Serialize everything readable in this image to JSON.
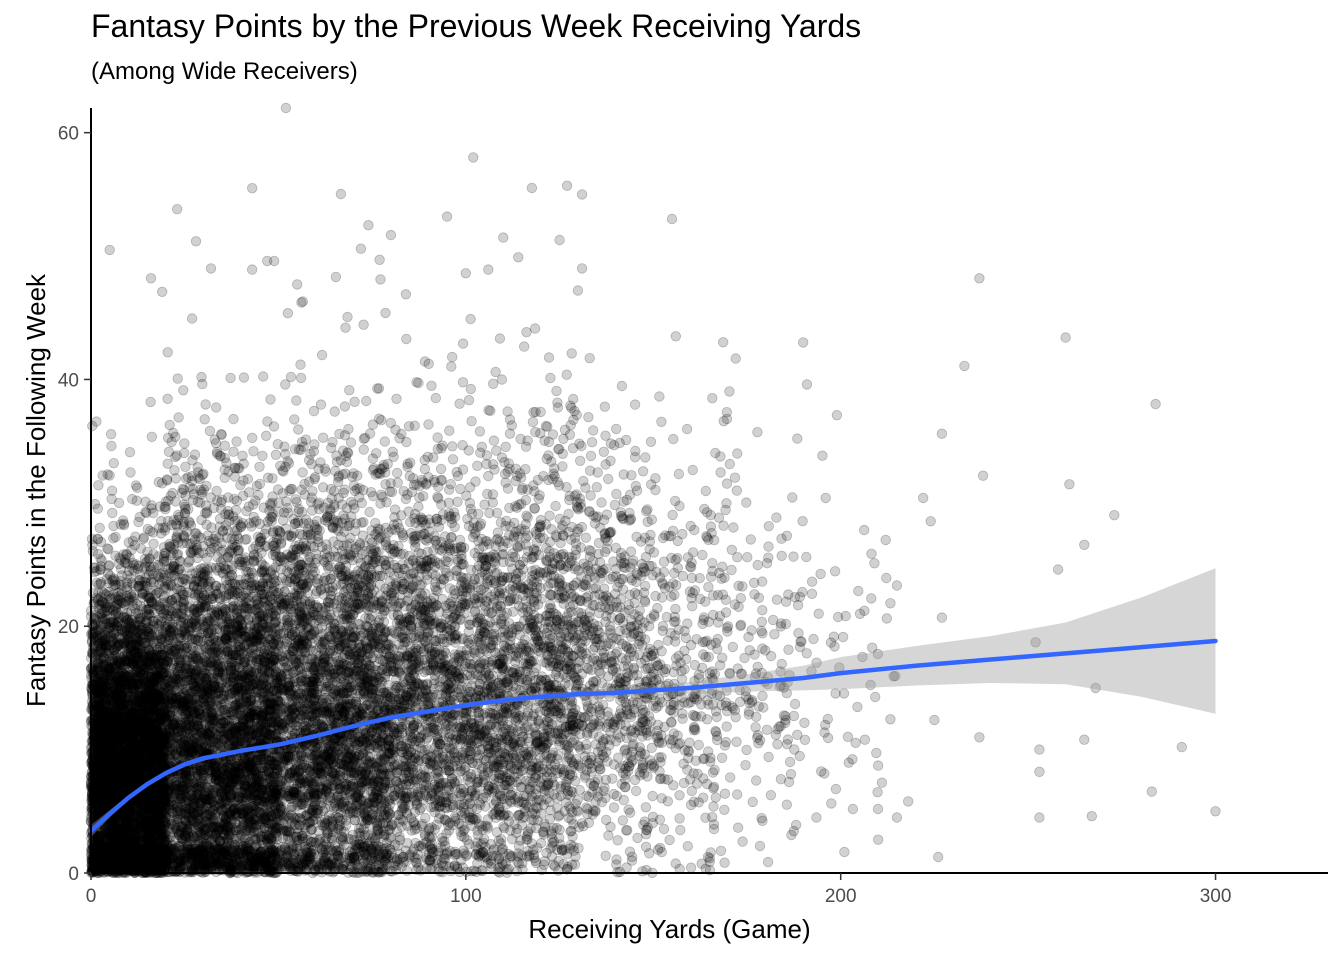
{
  "chart_data": {
    "type": "scatter",
    "title": "Fantasy Points by the Previous Week Receiving Yards",
    "subtitle": "(Among Wide Receivers)",
    "xlabel": "Receiving Yards (Game)",
    "ylabel": "Fantasy Points in the Following Week",
    "xlim": [
      0,
      330
    ],
    "ylim": [
      0,
      62
    ],
    "x_ticks": [
      0,
      100,
      200,
      300
    ],
    "y_ticks": [
      0,
      20,
      40,
      60
    ],
    "grid": false,
    "point_color": "#000000",
    "point_opacity": 0.18,
    "outlier_points": [
      {
        "x": 52,
        "y": 62
      },
      {
        "x": 102,
        "y": 58
      },
      {
        "x": 127,
        "y": 55.7
      },
      {
        "x": 43,
        "y": 55.5
      },
      {
        "x": 131,
        "y": 55
      },
      {
        "x": 23,
        "y": 53.8
      },
      {
        "x": 95,
        "y": 53.2
      },
      {
        "x": 155,
        "y": 53
      },
      {
        "x": 74,
        "y": 52.5
      },
      {
        "x": 28,
        "y": 51.2
      },
      {
        "x": 80,
        "y": 51.7
      },
      {
        "x": 110,
        "y": 51.5
      },
      {
        "x": 125,
        "y": 51.3
      },
      {
        "x": 72,
        "y": 50.6
      },
      {
        "x": 5,
        "y": 50.5
      },
      {
        "x": 114,
        "y": 49.9
      },
      {
        "x": 47,
        "y": 49.6
      },
      {
        "x": 77,
        "y": 49.7
      },
      {
        "x": 32,
        "y": 49
      },
      {
        "x": 43,
        "y": 48.9
      },
      {
        "x": 100,
        "y": 48.6
      },
      {
        "x": 131,
        "y": 49
      },
      {
        "x": 16,
        "y": 48.2
      },
      {
        "x": 55,
        "y": 47.7
      },
      {
        "x": 106,
        "y": 48.9
      },
      {
        "x": 237,
        "y": 48.2
      },
      {
        "x": 19,
        "y": 47.1
      },
      {
        "x": 84,
        "y": 46.9
      },
      {
        "x": 156,
        "y": 43.5
      },
      {
        "x": 260,
        "y": 43.4
      },
      {
        "x": 190,
        "y": 43
      },
      {
        "x": 172,
        "y": 41.7
      },
      {
        "x": 233,
        "y": 41.1
      },
      {
        "x": 191,
        "y": 39.6
      },
      {
        "x": 284,
        "y": 38
      },
      {
        "x": 199,
        "y": 37.1
      },
      {
        "x": 227,
        "y": 35.6
      },
      {
        "x": 238,
        "y": 32.2
      },
      {
        "x": 261,
        "y": 31.5
      },
      {
        "x": 222,
        "y": 30.4
      },
      {
        "x": 196,
        "y": 30.4
      },
      {
        "x": 273,
        "y": 29
      },
      {
        "x": 224,
        "y": 28.5
      },
      {
        "x": 212,
        "y": 27
      },
      {
        "x": 265,
        "y": 26.6
      },
      {
        "x": 258,
        "y": 24.6
      },
      {
        "x": 209,
        "y": 25.1
      },
      {
        "x": 215,
        "y": 23.3
      },
      {
        "x": 252,
        "y": 18.7
      },
      {
        "x": 227,
        "y": 20.7
      },
      {
        "x": 268,
        "y": 15
      },
      {
        "x": 225,
        "y": 12.4
      },
      {
        "x": 237,
        "y": 11
      },
      {
        "x": 253,
        "y": 10
      },
      {
        "x": 265,
        "y": 10.8
      },
      {
        "x": 291,
        "y": 10.2
      },
      {
        "x": 253,
        "y": 8.2
      },
      {
        "x": 283,
        "y": 6.6
      },
      {
        "x": 300,
        "y": 5
      },
      {
        "x": 253,
        "y": 4.5
      },
      {
        "x": 267,
        "y": 4.6
      },
      {
        "x": 201,
        "y": 1.7
      },
      {
        "x": 226,
        "y": 1.3
      },
      {
        "x": 210,
        "y": 2.7
      },
      {
        "x": 215,
        "y": 4.5
      },
      {
        "x": 218,
        "y": 5.8
      }
    ],
    "density_profile": [
      {
        "x_min": 0,
        "x_max": 20,
        "count": 5200,
        "y_mode": 6,
        "y_spread": 9
      },
      {
        "x_min": 20,
        "x_max": 50,
        "count": 4200,
        "y_mode": 8,
        "y_spread": 11
      },
      {
        "x_min": 50,
        "x_max": 80,
        "count": 3000,
        "y_mode": 10,
        "y_spread": 11
      },
      {
        "x_min": 80,
        "x_max": 110,
        "count": 1900,
        "y_mode": 11,
        "y_spread": 11
      },
      {
        "x_min": 110,
        "x_max": 130,
        "count": 1100,
        "y_mode": 12,
        "y_spread": 11
      },
      {
        "x_min": 130,
        "x_max": 150,
        "count": 650,
        "y_mode": 13,
        "y_spread": 10
      },
      {
        "x_min": 150,
        "x_max": 170,
        "count": 330,
        "y_mode": 13,
        "y_spread": 10
      },
      {
        "x_min": 170,
        "x_max": 190,
        "count": 150,
        "y_mode": 14,
        "y_spread": 9
      },
      {
        "x_min": 190,
        "x_max": 215,
        "count": 60,
        "y_mode": 14,
        "y_spread": 8
      }
    ],
    "series": [
      {
        "type": "smooth",
        "color": "#3366FF",
        "x": [
          0,
          5,
          10,
          15,
          20,
          25,
          30,
          40,
          50,
          60,
          70,
          80,
          90,
          100,
          110,
          120,
          130,
          140,
          150,
          160,
          175,
          190,
          200,
          220,
          240,
          260,
          280,
          300
        ],
        "y": [
          3.4,
          4.8,
          6.1,
          7.2,
          8.1,
          8.8,
          9.3,
          9.9,
          10.4,
          11.1,
          11.9,
          12.6,
          13.1,
          13.6,
          14.0,
          14.3,
          14.5,
          14.6,
          14.8,
          15.0,
          15.4,
          15.8,
          16.2,
          16.8,
          17.3,
          17.8,
          18.3,
          18.8
        ],
        "ci_lower": [
          2.9,
          4.5,
          5.9,
          7.0,
          7.9,
          8.6,
          9.1,
          9.8,
          10.3,
          11.0,
          11.8,
          12.5,
          12.9,
          13.4,
          13.8,
          14.0,
          14.2,
          14.2,
          14.4,
          14.5,
          14.7,
          14.8,
          14.9,
          15.2,
          15.4,
          15.3,
          14.3,
          12.9
        ],
        "ci_upper": [
          3.9,
          5.1,
          6.3,
          7.4,
          8.3,
          9.0,
          9.5,
          10.0,
          10.5,
          11.2,
          12.0,
          12.7,
          13.3,
          13.8,
          14.2,
          14.6,
          14.8,
          15.0,
          15.2,
          15.5,
          16.1,
          16.8,
          17.5,
          18.4,
          19.2,
          20.3,
          22.3,
          24.7
        ]
      }
    ]
  }
}
